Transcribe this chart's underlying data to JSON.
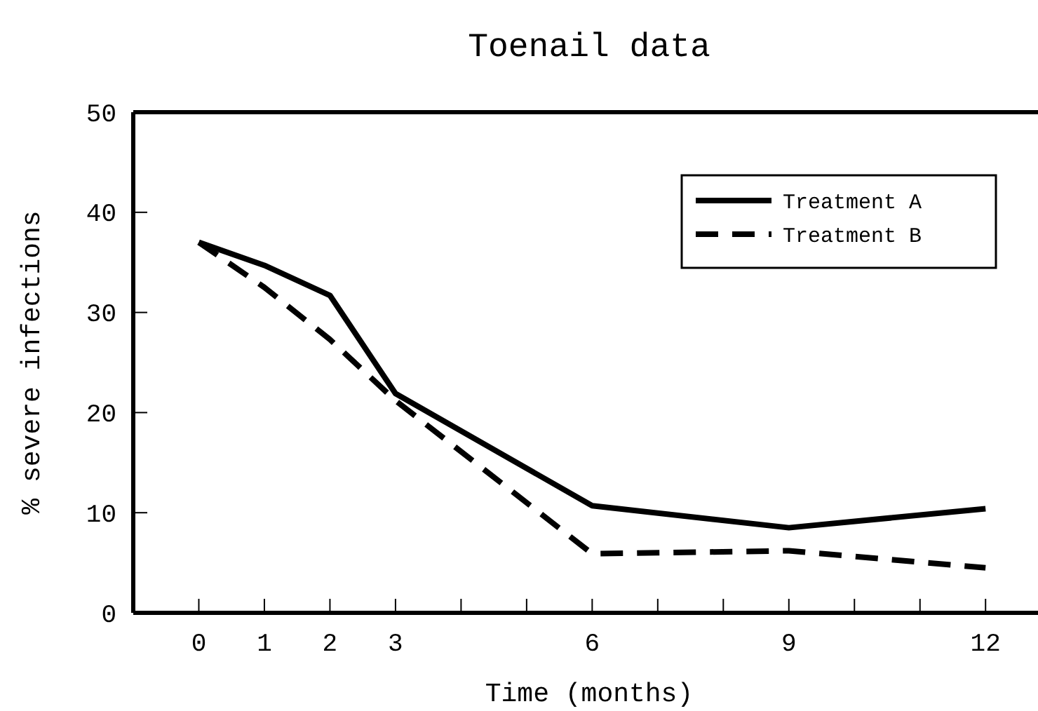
{
  "chart_data": {
    "type": "line",
    "title": "Toenail data",
    "xlabel": "Time (months)",
    "ylabel": "% severe infections",
    "x": [
      0,
      1,
      2,
      3,
      6,
      9,
      12
    ],
    "series": [
      {
        "name": "Treatment A",
        "color": "#000000",
        "line_style": "solid",
        "values": [
          37.0,
          34.7,
          31.7,
          21.9,
          10.7,
          8.5,
          10.4
        ]
      },
      {
        "name": "Treatment B",
        "color": "#000000",
        "line_style": "dashed",
        "values": [
          37.0,
          32.5,
          27.3,
          21.2,
          5.9,
          6.2,
          4.5
        ]
      }
    ],
    "xlim": [
      -1,
      12.8
    ],
    "ylim": [
      0,
      50
    ],
    "xticks": [
      0,
      1,
      2,
      3,
      {
        "value": 4,
        "label": null
      },
      {
        "value": 5,
        "label": null
      },
      6,
      {
        "value": 7,
        "label": null
      },
      {
        "value": 8,
        "label": null
      },
      9,
      {
        "value": 10,
        "label": null
      },
      {
        "value": 11,
        "label": null
      },
      12
    ],
    "yticks": [
      0,
      10,
      20,
      30,
      40,
      50
    ],
    "legend": "top right",
    "grid": false,
    "marker": "none"
  }
}
